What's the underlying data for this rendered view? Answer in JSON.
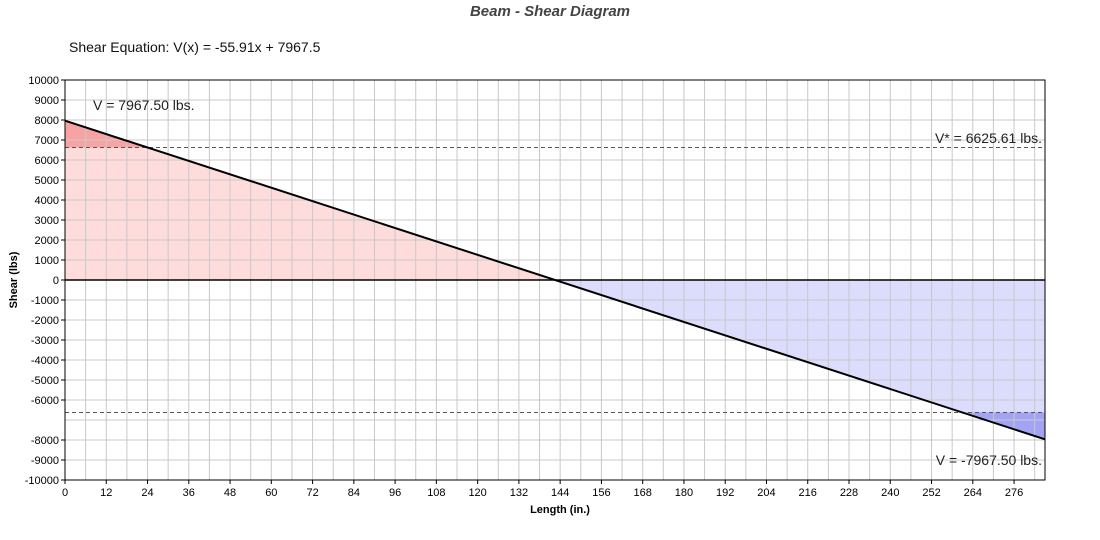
{
  "chart_data": {
    "type": "area",
    "title": "Beam - Shear Diagram",
    "subtitle": "Shear Equation:  V(x) = -55.91x + 7967.5",
    "xlabel": "Length (in.)",
    "ylabel": "Shear (lbs)",
    "xlim": [
      0,
      285
    ],
    "ylim": [
      -10000,
      10000
    ],
    "x_ticks": [
      0,
      12,
      24,
      36,
      48,
      60,
      72,
      84,
      96,
      108,
      120,
      132,
      144,
      156,
      168,
      180,
      192,
      204,
      216,
      228,
      240,
      252,
      264,
      276
    ],
    "y_ticks": [
      10000,
      9000,
      8000,
      7000,
      6000,
      5000,
      4000,
      3000,
      2000,
      1000,
      0,
      -1000,
      -2000,
      -3000,
      -4000,
      -5000,
      -6000,
      -8000,
      -9000,
      -10000
    ],
    "grid": true,
    "series": [
      {
        "x": [
          0,
          285
        ],
        "y": [
          7967.5,
          -7967.5
        ]
      }
    ],
    "reference_lines": [
      {
        "y": 6625.61
      },
      {
        "y": -6625.61
      }
    ],
    "annotations": {
      "v_max": "V = 7967.50 lbs.",
      "v_star": "V* = 6625.61 lbs.",
      "v_min": "V = -7967.50 lbs."
    },
    "colors": {
      "positive_fill": "#ffdcdc",
      "positive_excess_fill": "#f8a3a3",
      "negative_fill": "#dcdcfc",
      "negative_excess_fill": "#a3a3f4",
      "line": "#000000",
      "grid": "#c8c8c8",
      "reference_line": "#555555"
    }
  }
}
